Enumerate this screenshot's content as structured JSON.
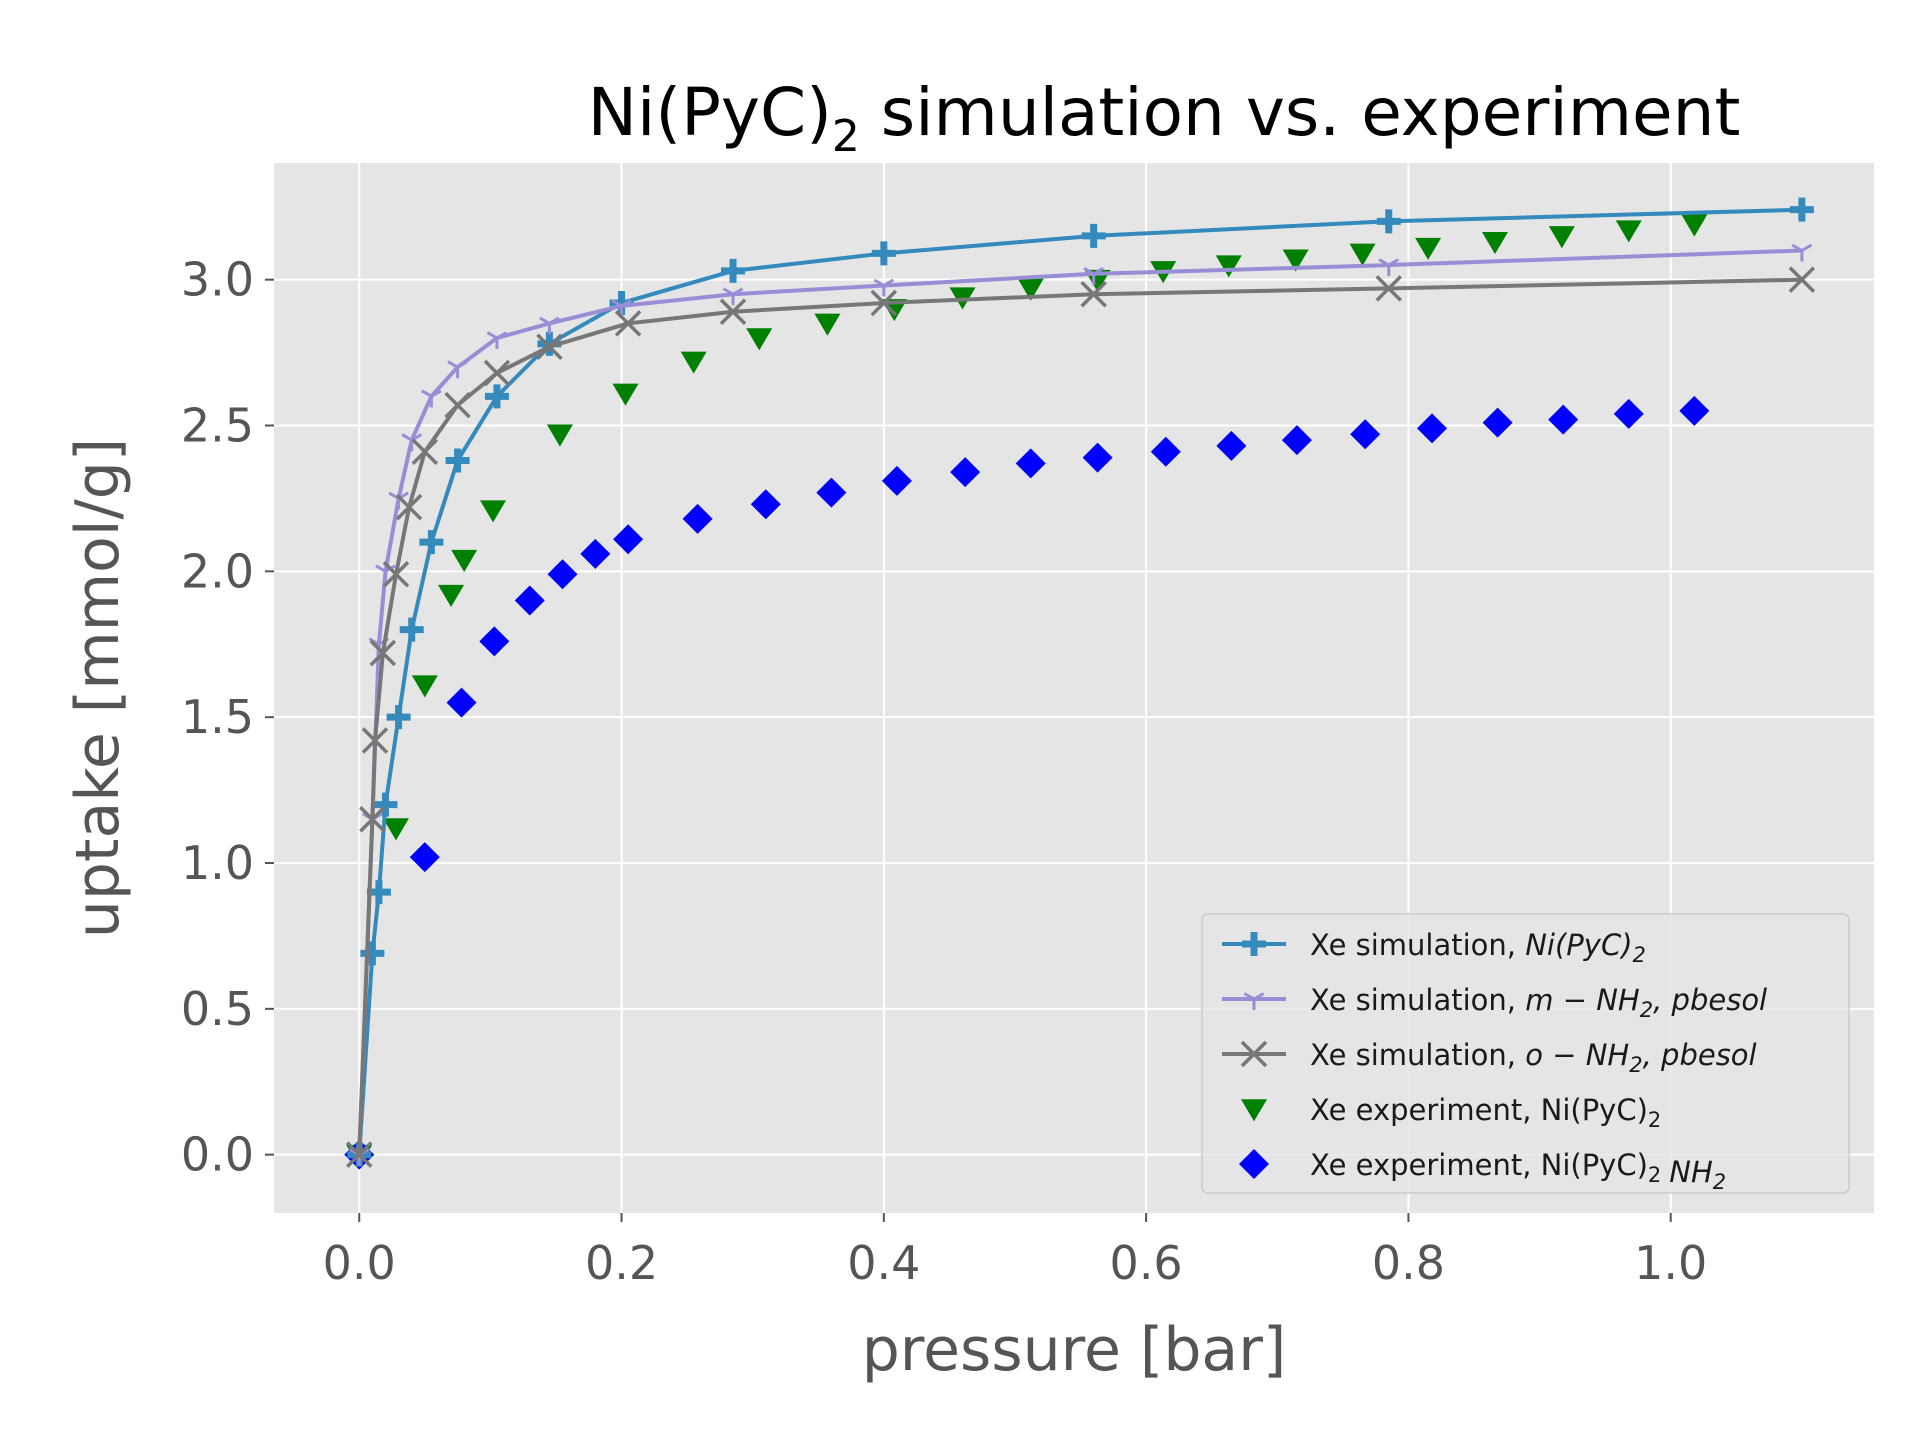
{
  "chart_data": {
    "type": "line",
    "title": "Ni(PyC)",
    "title_subscript": "2",
    "title_suffix": " simulation vs. experiment",
    "xlabel": "pressure [bar]",
    "ylabel": "uptake [mmol/g]",
    "xlim": [
      -0.065,
      1.155
    ],
    "ylim": [
      -0.2,
      3.4
    ],
    "x_ticks": [
      0.0,
      0.2,
      0.4,
      0.6,
      0.8,
      1.0
    ],
    "x_tick_labels": [
      "0.0",
      "0.2",
      "0.4",
      "0.6",
      "0.8",
      "1.0"
    ],
    "y_ticks": [
      0.0,
      0.5,
      1.0,
      1.5,
      2.0,
      2.5,
      3.0
    ],
    "y_tick_labels": [
      "0.0",
      "0.5",
      "1.0",
      "1.5",
      "2.0",
      "2.5",
      "3.0"
    ],
    "grid": true,
    "background": "#e5e5e5",
    "legend_position": "lower-right",
    "series": [
      {
        "name": "Xe simulation, Ni(PyC)2",
        "legend_prefix": "Xe simulation, ",
        "legend_math": "Ni(PyC)",
        "legend_sub": "2",
        "legend_suffix": "",
        "style": "line",
        "marker": "plus",
        "color": "#348abd",
        "points": [
          [
            0.0,
            0.0
          ],
          [
            0.01,
            0.69
          ],
          [
            0.015,
            0.9
          ],
          [
            0.02,
            1.2
          ],
          [
            0.03,
            1.5
          ],
          [
            0.04,
            1.8
          ],
          [
            0.055,
            2.1
          ],
          [
            0.075,
            2.38
          ],
          [
            0.105,
            2.6
          ],
          [
            0.145,
            2.78
          ],
          [
            0.2,
            2.92
          ],
          [
            0.285,
            3.03
          ],
          [
            0.4,
            3.09
          ],
          [
            0.56,
            3.15
          ],
          [
            0.785,
            3.2
          ],
          [
            1.1,
            3.24
          ]
        ]
      },
      {
        "name": "Xe simulation, m-NH2, pbesol",
        "legend_prefix": "Xe simulation, ",
        "legend_math": "m − NH",
        "legend_sub": "2",
        "legend_suffix": ", pbesol",
        "style": "line",
        "marker": "tri",
        "color": "#988ed5",
        "points": [
          [
            0.0,
            0.0
          ],
          [
            0.01,
            1.15
          ],
          [
            0.015,
            1.75
          ],
          [
            0.02,
            2.0
          ],
          [
            0.03,
            2.25
          ],
          [
            0.04,
            2.45
          ],
          [
            0.055,
            2.6
          ],
          [
            0.075,
            2.7
          ],
          [
            0.105,
            2.8
          ],
          [
            0.145,
            2.85
          ],
          [
            0.2,
            2.91
          ],
          [
            0.285,
            2.95
          ],
          [
            0.4,
            2.98
          ],
          [
            0.56,
            3.02
          ],
          [
            0.785,
            3.05
          ],
          [
            1.1,
            3.1
          ]
        ]
      },
      {
        "name": "Xe simulation, o-NH2, pbesol",
        "legend_prefix": "Xe simulation, ",
        "legend_math": "o − NH",
        "legend_sub": "2",
        "legend_suffix": ", pbesol",
        "style": "line",
        "marker": "x",
        "color": "#777777",
        "points": [
          [
            0.0,
            0.0
          ],
          [
            0.01,
            1.15
          ],
          [
            0.012,
            1.42
          ],
          [
            0.018,
            1.72
          ],
          [
            0.028,
            1.99
          ],
          [
            0.038,
            2.22
          ],
          [
            0.05,
            2.41
          ],
          [
            0.075,
            2.57
          ],
          [
            0.105,
            2.68
          ],
          [
            0.145,
            2.77
          ],
          [
            0.205,
            2.85
          ],
          [
            0.285,
            2.89
          ],
          [
            0.4,
            2.92
          ],
          [
            0.56,
            2.95
          ],
          [
            0.785,
            2.97
          ],
          [
            1.1,
            3.0
          ]
        ]
      },
      {
        "name": "Xe experiment, Ni(PyC)2",
        "legend_prefix": "Xe experiment, Ni(PyC)",
        "legend_math": "",
        "legend_sub": "2",
        "legend_suffix": "",
        "style": "scatter",
        "marker": "triangle-down",
        "color": "#008000",
        "points": [
          [
            0.0,
            0.0
          ],
          [
            0.028,
            1.12
          ],
          [
            0.05,
            1.61
          ],
          [
            0.07,
            1.92
          ],
          [
            0.08,
            2.04
          ],
          [
            0.102,
            2.21
          ],
          [
            0.153,
            2.47
          ],
          [
            0.203,
            2.61
          ],
          [
            0.255,
            2.72
          ],
          [
            0.305,
            2.8
          ],
          [
            0.357,
            2.85
          ],
          [
            0.408,
            2.9
          ],
          [
            0.46,
            2.94
          ],
          [
            0.512,
            2.97
          ],
          [
            0.563,
            3.0
          ],
          [
            0.613,
            3.03
          ],
          [
            0.663,
            3.05
          ],
          [
            0.714,
            3.07
          ],
          [
            0.765,
            3.09
          ],
          [
            0.815,
            3.11
          ],
          [
            0.866,
            3.13
          ],
          [
            0.917,
            3.15
          ],
          [
            0.968,
            3.17
          ],
          [
            1.018,
            3.19
          ]
        ]
      },
      {
        "name": "Xe experiment, Ni(PyC)2 NH2",
        "legend_prefix": "Xe experiment, Ni(PyC)",
        "legend_math": "",
        "legend_sub": "2",
        "legend_suffix": "",
        "legend_extra_math": "NH",
        "legend_extra_sub": "2",
        "style": "scatter",
        "marker": "diamond",
        "color": "#0000ff",
        "points": [
          [
            0.0,
            0.0
          ],
          [
            0.05,
            1.02
          ],
          [
            0.078,
            1.55
          ],
          [
            0.103,
            1.76
          ],
          [
            0.13,
            1.9
          ],
          [
            0.155,
            1.99
          ],
          [
            0.18,
            2.06
          ],
          [
            0.205,
            2.11
          ],
          [
            0.258,
            2.18
          ],
          [
            0.31,
            2.23
          ],
          [
            0.36,
            2.27
          ],
          [
            0.41,
            2.31
          ],
          [
            0.462,
            2.34
          ],
          [
            0.512,
            2.37
          ],
          [
            0.563,
            2.39
          ],
          [
            0.615,
            2.41
          ],
          [
            0.665,
            2.43
          ],
          [
            0.715,
            2.45
          ],
          [
            0.767,
            2.47
          ],
          [
            0.818,
            2.49
          ],
          [
            0.868,
            2.51
          ],
          [
            0.918,
            2.52
          ],
          [
            0.968,
            2.54
          ],
          [
            1.018,
            2.55
          ]
        ]
      }
    ]
  }
}
